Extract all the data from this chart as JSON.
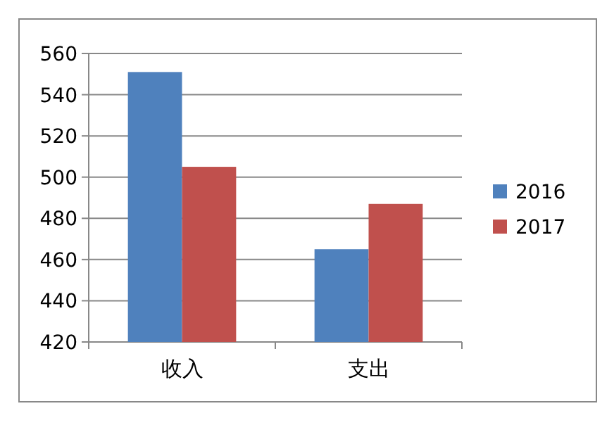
{
  "chart_data": {
    "type": "bar",
    "categories": [
      "收入",
      "支出"
    ],
    "series": [
      {
        "name": "2016",
        "color": "#4f81bd",
        "values": [
          551,
          465
        ]
      },
      {
        "name": "2017",
        "color": "#c0504d",
        "values": [
          505,
          487
        ]
      }
    ],
    "ylim": [
      420,
      560
    ],
    "yticks": [
      420,
      440,
      460,
      480,
      500,
      520,
      540,
      560
    ],
    "grid": "y",
    "legend": "right"
  }
}
